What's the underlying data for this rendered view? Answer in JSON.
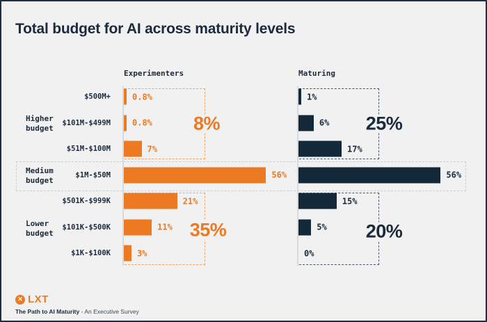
{
  "title": "Total budget for AI across maturity levels",
  "colors": {
    "orange": "#EC7A22",
    "orange-dash": "#F2A568",
    "navy-bar": "#132838",
    "navy-text": "#1B2B3C",
    "navy-dash": "#4A5764",
    "gray-dash": "#C9CED3",
    "baseline": "#D7DADD",
    "bg": "#F1F1F1",
    "frame": "#1D3043"
  },
  "chart_data": {
    "type": "bar",
    "orientation": "horizontal",
    "categories": [
      "$500M+",
      "$101M-$499M",
      "$51M-$100M",
      "$1M-$50M",
      "$501K-$999K",
      "$101K-$500K",
      "$1K-$100K"
    ],
    "series": [
      {
        "name": "Experimenters",
        "color": "#EC7A22",
        "values": [
          0.8,
          0.8,
          7,
          56,
          21,
          11,
          3
        ],
        "labels": [
          "0.8%",
          "0.8%",
          "7%",
          "56%",
          "21%",
          "11%",
          "3%"
        ]
      },
      {
        "name": "Maturing",
        "color": "#132838",
        "values": [
          1,
          6,
          17,
          56,
          15,
          5,
          0
        ],
        "labels": [
          "1%",
          "6%",
          "17%",
          "56%",
          "15%",
          "5%",
          "0%"
        ]
      }
    ],
    "groups": [
      {
        "label": "Higher budget",
        "categories": [
          "$500M+",
          "$101M-$499M",
          "$51M-$100M"
        ],
        "experimenters_total": "8%",
        "maturing_total": "25%"
      },
      {
        "label": "Medium budget",
        "categories": [
          "$1M-$50M"
        ]
      },
      {
        "label": "Lower budget",
        "categories": [
          "$501K-$999K",
          "$101K-$500K",
          "$1K-$100K"
        ],
        "experimenters_total": "35%",
        "maturing_total": "20%"
      }
    ],
    "xlim": [
      0,
      60
    ],
    "grid": false,
    "legend_position": "column-headers"
  },
  "footer": {
    "logo_x": "✕",
    "logo_text": "LXT",
    "tagline_bold": "The Path to AI Maturity",
    "tagline_rest": " - An Executive Survey"
  }
}
